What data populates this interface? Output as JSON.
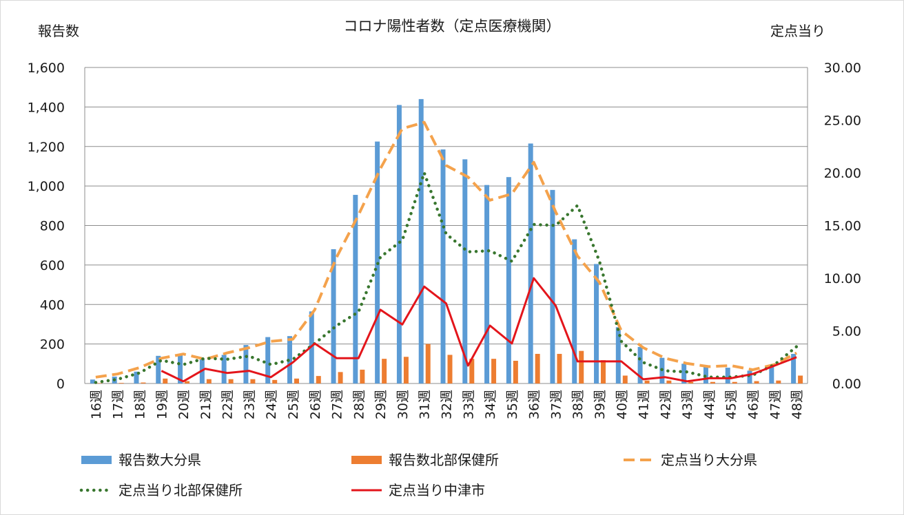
{
  "chart_data": {
    "type": "bar+line",
    "title": "コロナ陽性者数（定点医療機関）",
    "ylabel_left": "報告数",
    "ylabel_right": "定点当り",
    "ylim_left": [
      0,
      1600
    ],
    "ylim_right": [
      0,
      30
    ],
    "yticks_left": [
      "0",
      "200",
      "400",
      "600",
      "800",
      "1,000",
      "1,200",
      "1,400",
      "1,600"
    ],
    "yticks_right": [
      "0.00",
      "5.00",
      "10.00",
      "15.00",
      "20.00",
      "25.00",
      "30.00"
    ],
    "categories": [
      "16週",
      "17週",
      "18週",
      "19週",
      "20週",
      "21週",
      "22週",
      "23週",
      "24週",
      "25週",
      "26週",
      "27週",
      "28週",
      "29週",
      "30週",
      "31週",
      "32週",
      "33週",
      "34週",
      "35週",
      "36週",
      "37週",
      "38週",
      "39週",
      "40週",
      "41週",
      "42週",
      "43週",
      "44週",
      "45週",
      "46週",
      "47週",
      "48週"
    ],
    "bar_series": [
      {
        "name": "報告数大分県",
        "color": "#5b9bd5",
        "axis": "left",
        "values": [
          20,
          35,
          60,
          140,
          150,
          125,
          145,
          195,
          235,
          240,
          365,
          680,
          955,
          1225,
          1410,
          1440,
          1185,
          1135,
          1005,
          1045,
          1215,
          980,
          730,
          605,
          285,
          185,
          130,
          100,
          85,
          80,
          65,
          95,
          150
        ]
      },
      {
        "name": "報告数北部保健所",
        "color": "#ed7d31",
        "axis": "left",
        "values": [
          2,
          3,
          5,
          25,
          12,
          22,
          22,
          22,
          18,
          25,
          38,
          58,
          70,
          125,
          135,
          200,
          145,
          125,
          125,
          115,
          150,
          150,
          165,
          118,
          40,
          15,
          15,
          8,
          8,
          8,
          12,
          15,
          40
        ]
      }
    ],
    "line_series": [
      {
        "name": "定点当り大分県",
        "color": "#f4a24c",
        "style": "dashed",
        "axis": "right",
        "values": [
          0.6,
          0.9,
          1.5,
          2.4,
          2.8,
          2.3,
          2.9,
          3.4,
          4.0,
          4.2,
          7.0,
          12.0,
          16.0,
          20.4,
          24.2,
          24.8,
          20.7,
          19.6,
          17.4,
          18.0,
          21.0,
          16.3,
          12.1,
          9.6,
          5.0,
          3.4,
          2.4,
          1.9,
          1.6,
          1.7,
          1.3,
          1.8,
          2.9
        ]
      },
      {
        "name": "定点当り北部保健所",
        "color": "#38762e",
        "style": "dotted",
        "axis": "right",
        "values": [
          0.1,
          0.4,
          1.0,
          2.2,
          1.8,
          2.4,
          2.3,
          2.6,
          1.8,
          2.3,
          3.8,
          5.5,
          6.8,
          12.0,
          13.6,
          20.0,
          14.2,
          12.5,
          12.6,
          11.6,
          15.1,
          15.0,
          16.9,
          11.6,
          4.0,
          2.0,
          1.2,
          1.1,
          0.6,
          0.6,
          0.8,
          1.8,
          3.5
        ]
      },
      {
        "name": "定点当り中津市",
        "color": "#e3151b",
        "style": "solid",
        "axis": "right",
        "start_index": 3,
        "values": [
          null,
          null,
          null,
          1.2,
          0.2,
          1.4,
          1.0,
          1.2,
          0.6,
          2.0,
          3.8,
          2.4,
          2.4,
          7.0,
          5.6,
          9.2,
          7.6,
          1.7,
          5.5,
          3.8,
          10.0,
          7.4,
          2.1,
          2.1,
          2.1,
          0.4,
          0.6,
          0.2,
          0.5,
          0.5,
          0.9,
          1.7,
          2.5
        ]
      }
    ],
    "legend": [
      {
        "label": "報告数大分県",
        "kind": "bar",
        "color": "#5b9bd5"
      },
      {
        "label": "報告数北部保健所",
        "kind": "bar",
        "color": "#ed7d31"
      },
      {
        "label": "定点当り大分県",
        "kind": "dashed",
        "color": "#f4a24c"
      },
      {
        "label": "定点当り北部保健所",
        "kind": "dotted",
        "color": "#38762e"
      },
      {
        "label": "定点当り中津市",
        "kind": "solid",
        "color": "#e3151b"
      }
    ],
    "legend_position": "bottom"
  }
}
